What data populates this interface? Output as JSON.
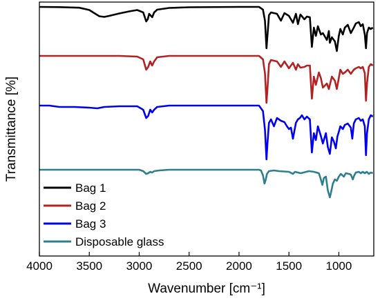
{
  "chart_data": {
    "type": "line",
    "title": "",
    "xlabel": "Wavenumber [cm⁻¹]",
    "ylabel": "Transmittance [%]",
    "xlim": [
      4000,
      650
    ],
    "x_reversed": true,
    "y_ticks_shown": false,
    "grid": false,
    "legend_position": "bottom-left",
    "x_ticks": [
      4000,
      3500,
      3000,
      2500,
      2000,
      1500,
      1000
    ],
    "x_tick_labels": [
      "4000",
      "3500",
      "3000",
      "2500",
      "2000",
      "1500",
      "1000"
    ],
    "series": [
      {
        "name": "Bag 1",
        "color": "#000000",
        "points": [
          [
            4000,
            0
          ],
          [
            3800,
            -0.3
          ],
          [
            3600,
            -1.2
          ],
          [
            3500,
            -4.5
          ],
          [
            3400,
            -13.5
          ],
          [
            3350,
            -14.5
          ],
          [
            3300,
            -13
          ],
          [
            3200,
            -9.5
          ],
          [
            3100,
            -6.5
          ],
          [
            3020,
            -4.5
          ],
          [
            2960,
            -8
          ],
          [
            2930,
            -21
          ],
          [
            2915,
            -18
          ],
          [
            2900,
            -10
          ],
          [
            2870,
            -15
          ],
          [
            2850,
            -8
          ],
          [
            2820,
            -4
          ],
          [
            2700,
            -1.5
          ],
          [
            2500,
            -0.5
          ],
          [
            2000,
            0
          ],
          [
            1800,
            0
          ],
          [
            1760,
            -4
          ],
          [
            1740,
            -20
          ],
          [
            1725,
            -60
          ],
          [
            1715,
            -42
          ],
          [
            1700,
            -12
          ],
          [
            1680,
            -8
          ],
          [
            1620,
            -10
          ],
          [
            1580,
            -20
          ],
          [
            1545,
            -9
          ],
          [
            1500,
            -13
          ],
          [
            1460,
            -23
          ],
          [
            1430,
            -10
          ],
          [
            1410,
            -25
          ],
          [
            1385,
            -11
          ],
          [
            1345,
            -18
          ],
          [
            1320,
            -14
          ],
          [
            1290,
            -15
          ],
          [
            1270,
            -58
          ],
          [
            1250,
            -30
          ],
          [
            1230,
            -42
          ],
          [
            1210,
            -28
          ],
          [
            1180,
            -40
          ],
          [
            1160,
            -38
          ],
          [
            1120,
            -48
          ],
          [
            1100,
            -35
          ],
          [
            1090,
            -52
          ],
          [
            1070,
            -44
          ],
          [
            1040,
            -50
          ],
          [
            1020,
            -64
          ],
          [
            1000,
            -42
          ],
          [
            985,
            -32
          ],
          [
            960,
            -40
          ],
          [
            940,
            -30
          ],
          [
            910,
            -26
          ],
          [
            880,
            -38
          ],
          [
            850,
            -30
          ],
          [
            830,
            -24
          ],
          [
            800,
            -22
          ],
          [
            780,
            -28
          ],
          [
            760,
            -25
          ],
          [
            740,
            -40
          ],
          [
            728,
            -60
          ],
          [
            718,
            -38
          ],
          [
            700,
            -30
          ],
          [
            680,
            -32
          ],
          [
            660,
            -30
          ]
        ]
      },
      {
        "name": "Bag 2",
        "color": "#b22222",
        "points": [
          [
            4000,
            0
          ],
          [
            3600,
            0
          ],
          [
            3400,
            0
          ],
          [
            3200,
            0
          ],
          [
            3020,
            -1
          ],
          [
            2960,
            -5
          ],
          [
            2930,
            -20
          ],
          [
            2910,
            -16
          ],
          [
            2890,
            -8
          ],
          [
            2870,
            -14
          ],
          [
            2850,
            -8
          ],
          [
            2820,
            -2
          ],
          [
            2700,
            0
          ],
          [
            2000,
            0
          ],
          [
            1800,
            0
          ],
          [
            1760,
            -5
          ],
          [
            1740,
            -25
          ],
          [
            1725,
            -68
          ],
          [
            1715,
            -48
          ],
          [
            1700,
            -12
          ],
          [
            1680,
            -6
          ],
          [
            1620,
            -8
          ],
          [
            1580,
            -16
          ],
          [
            1545,
            -8
          ],
          [
            1500,
            -18
          ],
          [
            1460,
            -10
          ],
          [
            1430,
            -20
          ],
          [
            1410,
            -12
          ],
          [
            1385,
            -17
          ],
          [
            1345,
            -16
          ],
          [
            1320,
            -14
          ],
          [
            1290,
            -14
          ],
          [
            1270,
            -62
          ],
          [
            1250,
            -30
          ],
          [
            1230,
            -42
          ],
          [
            1200,
            -24
          ],
          [
            1180,
            -32
          ],
          [
            1160,
            -46
          ],
          [
            1120,
            -40
          ],
          [
            1100,
            -48
          ],
          [
            1070,
            -30
          ],
          [
            1040,
            -36
          ],
          [
            1020,
            -48
          ],
          [
            1000,
            -32
          ],
          [
            985,
            -20
          ],
          [
            960,
            -26
          ],
          [
            940,
            -24
          ],
          [
            910,
            -20
          ],
          [
            880,
            -26
          ],
          [
            850,
            -20
          ],
          [
            830,
            -18
          ],
          [
            800,
            -16
          ],
          [
            780,
            -18
          ],
          [
            760,
            -16
          ],
          [
            740,
            -25
          ],
          [
            728,
            -65
          ],
          [
            718,
            -40
          ],
          [
            700,
            -16
          ],
          [
            680,
            -12
          ],
          [
            660,
            -14
          ]
        ]
      },
      {
        "name": "Bag 3",
        "color": "#0000ee",
        "points": [
          [
            4000,
            0
          ],
          [
            3900,
            0
          ],
          [
            3800,
            -2
          ],
          [
            3650,
            -2
          ],
          [
            3500,
            -3
          ],
          [
            3420,
            -4
          ],
          [
            3350,
            -2
          ],
          [
            3200,
            -1
          ],
          [
            3020,
            -1
          ],
          [
            2960,
            -6
          ],
          [
            2930,
            -18
          ],
          [
            2910,
            -15
          ],
          [
            2890,
            -6
          ],
          [
            2870,
            -10
          ],
          [
            2850,
            -6
          ],
          [
            2820,
            -2
          ],
          [
            2700,
            0
          ],
          [
            2000,
            0
          ],
          [
            1800,
            0
          ],
          [
            1760,
            -8
          ],
          [
            1740,
            -35
          ],
          [
            1725,
            -78
          ],
          [
            1715,
            -55
          ],
          [
            1700,
            -25
          ],
          [
            1680,
            -20
          ],
          [
            1650,
            -30
          ],
          [
            1620,
            -18
          ],
          [
            1580,
            -22
          ],
          [
            1545,
            -24
          ],
          [
            1520,
            -30
          ],
          [
            1500,
            -34
          ],
          [
            1480,
            -32
          ],
          [
            1460,
            -48
          ],
          [
            1430,
            -25
          ],
          [
            1410,
            -20
          ],
          [
            1390,
            -18
          ],
          [
            1370,
            -14
          ],
          [
            1345,
            -20
          ],
          [
            1320,
            -16
          ],
          [
            1290,
            -20
          ],
          [
            1270,
            -68
          ],
          [
            1250,
            -40
          ],
          [
            1230,
            -50
          ],
          [
            1210,
            -30
          ],
          [
            1180,
            -44
          ],
          [
            1160,
            -55
          ],
          [
            1130,
            -40
          ],
          [
            1110,
            -60
          ],
          [
            1090,
            -70
          ],
          [
            1070,
            -46
          ],
          [
            1050,
            -52
          ],
          [
            1030,
            -62
          ],
          [
            1015,
            -45
          ],
          [
            1000,
            -38
          ],
          [
            985,
            -30
          ],
          [
            960,
            -34
          ],
          [
            940,
            -28
          ],
          [
            910,
            -26
          ],
          [
            880,
            -32
          ],
          [
            865,
            -48
          ],
          [
            850,
            -26
          ],
          [
            830,
            -20
          ],
          [
            800,
            -18
          ],
          [
            780,
            -22
          ],
          [
            760,
            -20
          ],
          [
            740,
            -30
          ],
          [
            728,
            -72
          ],
          [
            718,
            -40
          ],
          [
            700,
            -20
          ],
          [
            680,
            -14
          ],
          [
            660,
            -16
          ]
        ]
      },
      {
        "name": "Disposable glass",
        "color": "#2e7f8e",
        "points": [
          [
            4000,
            0
          ],
          [
            3600,
            0
          ],
          [
            3200,
            0
          ],
          [
            3000,
            0
          ],
          [
            2960,
            -2
          ],
          [
            2930,
            -6
          ],
          [
            2910,
            -5
          ],
          [
            2890,
            -3
          ],
          [
            2870,
            -4
          ],
          [
            2850,
            -2
          ],
          [
            2800,
            -1
          ],
          [
            2700,
            0
          ],
          [
            2000,
            0
          ],
          [
            1800,
            0
          ],
          [
            1780,
            -1
          ],
          [
            1760,
            -8
          ],
          [
            1745,
            -20
          ],
          [
            1735,
            -16
          ],
          [
            1720,
            -6
          ],
          [
            1700,
            -2
          ],
          [
            1650,
            -1
          ],
          [
            1600,
            -2
          ],
          [
            1500,
            -3
          ],
          [
            1460,
            -6
          ],
          [
            1440,
            -3
          ],
          [
            1380,
            -5
          ],
          [
            1300,
            -2
          ],
          [
            1250,
            -3
          ],
          [
            1200,
            -5
          ],
          [
            1180,
            -14
          ],
          [
            1165,
            -22
          ],
          [
            1150,
            -12
          ],
          [
            1130,
            -10
          ],
          [
            1110,
            -30
          ],
          [
            1090,
            -40
          ],
          [
            1080,
            -34
          ],
          [
            1060,
            -20
          ],
          [
            1040,
            -14
          ],
          [
            1020,
            -16
          ],
          [
            1000,
            -10
          ],
          [
            980,
            -6
          ],
          [
            950,
            -10
          ],
          [
            930,
            -5
          ],
          [
            900,
            -6
          ],
          [
            880,
            -7
          ],
          [
            860,
            -14
          ],
          [
            845,
            -8
          ],
          [
            830,
            -4
          ],
          [
            800,
            -3
          ],
          [
            780,
            -5
          ],
          [
            760,
            -3
          ],
          [
            740,
            -5
          ],
          [
            720,
            -3
          ],
          [
            700,
            -6
          ],
          [
            680,
            -4
          ],
          [
            660,
            -5
          ]
        ]
      }
    ]
  }
}
